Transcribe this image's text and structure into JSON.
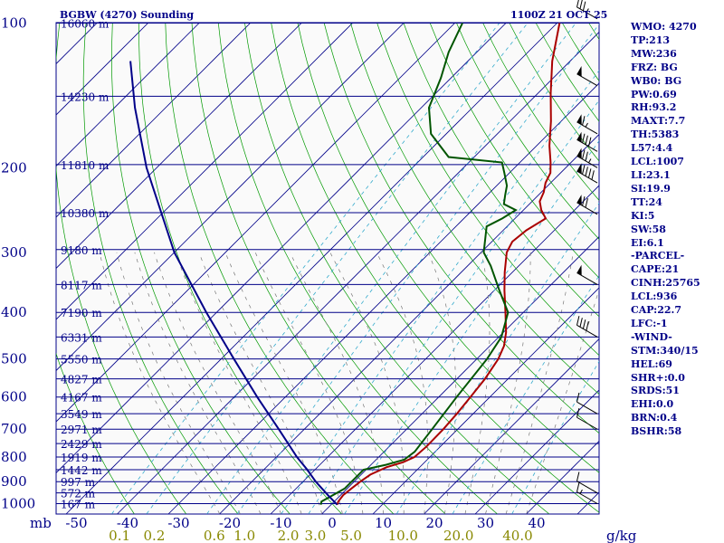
{
  "header": {
    "station": "BGBW (4270) Sounding",
    "time": "1100Z 21 OCT 25"
  },
  "stats": [
    "WMO: 4270",
    "TP:213",
    "MW:236",
    "FRZ: BG",
    "WB0: BG",
    "PW:0.69",
    "RH:93.2",
    "MAXT:7.7",
    "TH:5383",
    "L57:4.4",
    "LCL:1007",
    "LI:23.1",
    "SI:19.9",
    "TT:24",
    "KI:5",
    "SW:58",
    "EI:6.1",
    "-PARCEL-",
    "CAPE:21",
    "CINH:25765",
    "LCL:936",
    "CAP:22.7",
    "LFC:-1",
    "-WIND-",
    "STM:340/15",
    "HEL:69",
    "SHR+:0.0",
    "SRDS:51",
    "EHI:0.0",
    "BRN:0.4",
    "BSHR:58"
  ],
  "chart_data": {
    "type": "skew-t",
    "title": "BGBW (4270) Sounding 1100Z 21 OCT 25",
    "pressure_unit": "mb",
    "pressure_ticks": [
      100,
      200,
      300,
      400,
      500,
      600,
      700,
      800,
      900,
      1000
    ],
    "pressure_tick_labels": [
      "100",
      "200",
      "300",
      "400",
      "500",
      "600",
      "700",
      "800",
      "900",
      "1000"
    ],
    "temperature_ticks": [
      -50,
      -40,
      -30,
      -20,
      -10,
      0,
      10,
      20,
      30,
      40
    ],
    "temperature_tick_labels": [
      "-50",
      "-40",
      "-30",
      "-20",
      "-10",
      "0",
      "10",
      "20",
      "30",
      "40"
    ],
    "mixing_ratio_unit": "g/kg",
    "mixing_ratio_labels": [
      "0.1",
      "0.2",
      "0.6",
      "1.0",
      "2.0",
      "3.0",
      "5.0",
      "10.0",
      "20.0",
      "40.0"
    ],
    "mixing_ratio_values": [
      0.1,
      0.2,
      0.6,
      1.0,
      2.0,
      3.0,
      5.0,
      10.0,
      20.0,
      40.0
    ],
    "height_levels": [
      {
        "p": 100,
        "label": "16060 m"
      },
      {
        "p": 142,
        "label": "14230 m"
      },
      {
        "p": 197,
        "label": "11810 m"
      },
      {
        "p": 248,
        "label": "10380 m"
      },
      {
        "p": 296,
        "label": "9180 m"
      },
      {
        "p": 350,
        "label": "8117 m"
      },
      {
        "p": 400,
        "label": "7190 m"
      },
      {
        "p": 450,
        "label": "6331 m"
      },
      {
        "p": 500,
        "label": "5550 m"
      },
      {
        "p": 550,
        "label": "4827 m"
      },
      {
        "p": 600,
        "label": "4167 m"
      },
      {
        "p": 650,
        "label": "3549 m"
      },
      {
        "p": 700,
        "label": "2971 m"
      },
      {
        "p": 750,
        "label": "2429 m"
      },
      {
        "p": 800,
        "label": "1919 m"
      },
      {
        "p": 850,
        "label": "1442 m"
      },
      {
        "p": 900,
        "label": "997 m"
      },
      {
        "p": 950,
        "label": "572 m"
      },
      {
        "p": 1000,
        "label": "167 m"
      }
    ],
    "series": [
      {
        "name": "temperature",
        "color": "#aa0000",
        "points": [
          [
            1005,
            1.2
          ],
          [
            990,
            0.8
          ],
          [
            960,
            0.5
          ],
          [
            930,
            0.8
          ],
          [
            900,
            1.2
          ],
          [
            870,
            1.8
          ],
          [
            840,
            3.5
          ],
          [
            820,
            5.8
          ],
          [
            800,
            7.0
          ],
          [
            760,
            7.3
          ],
          [
            700,
            7.2
          ],
          [
            650,
            6.8
          ],
          [
            600,
            6.2
          ],
          [
            550,
            5.5
          ],
          [
            500,
            4.2
          ],
          [
            470,
            2.8
          ],
          [
            440,
            0.5
          ],
          [
            400,
            -3.5
          ],
          [
            360,
            -8.0
          ],
          [
            330,
            -11.5
          ],
          [
            300,
            -15.0
          ],
          [
            285,
            -16.0
          ],
          [
            270,
            -15.5
          ],
          [
            255,
            -14.0
          ],
          [
            245,
            -16.5
          ],
          [
            235,
            -18.5
          ],
          [
            225,
            -19.5
          ],
          [
            215,
            -21.0
          ],
          [
            205,
            -22.0
          ],
          [
            195,
            -24.0
          ],
          [
            180,
            -27.5
          ],
          [
            160,
            -32.0
          ],
          [
            140,
            -37.5
          ],
          [
            120,
            -43.5
          ],
          [
            100,
            -49.5
          ]
        ]
      },
      {
        "name": "dewpoint",
        "color": "#005500",
        "points": [
          [
            1005,
            -2.0
          ],
          [
            990,
            -2.5
          ],
          [
            960,
            -1.5
          ],
          [
            930,
            -0.5
          ],
          [
            900,
            -0.5
          ],
          [
            870,
            -0.5
          ],
          [
            850,
            -0.5
          ],
          [
            830,
            3.0
          ],
          [
            810,
            5.5
          ],
          [
            780,
            6.0
          ],
          [
            700,
            5.0
          ],
          [
            600,
            3.5
          ],
          [
            500,
            2.0
          ],
          [
            450,
            0.5
          ],
          [
            400,
            -3.0
          ],
          [
            360,
            -9.0
          ],
          [
            320,
            -15.5
          ],
          [
            300,
            -19.5
          ],
          [
            280,
            -22.0
          ],
          [
            265,
            -24.0
          ],
          [
            255,
            -22.5
          ],
          [
            245,
            -21.5
          ],
          [
            238,
            -25.0
          ],
          [
            228,
            -26.5
          ],
          [
            218,
            -28.0
          ],
          [
            205,
            -31.0
          ],
          [
            195,
            -33.5
          ],
          [
            190,
            -45.0
          ],
          [
            170,
            -53.0
          ],
          [
            150,
            -58.5
          ],
          [
            130,
            -62.0
          ],
          [
            115,
            -65.5
          ],
          [
            100,
            -68.5
          ]
        ]
      },
      {
        "name": "parcel",
        "color": "#000088",
        "points": [
          [
            1005,
            1.2
          ],
          [
            960,
            -2.5
          ],
          [
            900,
            -7.5
          ],
          [
            850,
            -11.5
          ],
          [
            800,
            -16.0
          ],
          [
            700,
            -25.0
          ],
          [
            600,
            -35.5
          ],
          [
            500,
            -47.5
          ],
          [
            400,
            -62.0
          ],
          [
            300,
            -80.0
          ],
          [
            200,
            -102.0
          ],
          [
            150,
            -116.0
          ],
          [
            120,
            -126.0
          ]
        ]
      }
    ],
    "wind_barbs": [
      {
        "p": 1000,
        "dir": 300,
        "spd": 15
      },
      {
        "p": 950,
        "dir": 300,
        "spd": 10
      },
      {
        "p": 700,
        "dir": 300,
        "spd": 10
      },
      {
        "p": 650,
        "dir": 300,
        "spd": 10
      },
      {
        "p": 450,
        "dir": 300,
        "spd": 40
      },
      {
        "p": 350,
        "dir": 300,
        "spd": 50
      },
      {
        "p": 250,
        "dir": 300,
        "spd": 70
      },
      {
        "p": 215,
        "dir": 300,
        "spd": 90
      },
      {
        "p": 200,
        "dir": 300,
        "spd": 75
      },
      {
        "p": 185,
        "dir": 300,
        "spd": 80
      },
      {
        "p": 170,
        "dir": 300,
        "spd": 65
      },
      {
        "p": 135,
        "dir": 300,
        "spd": 50
      },
      {
        "p": 98,
        "dir": 300,
        "spd": 35
      }
    ]
  }
}
